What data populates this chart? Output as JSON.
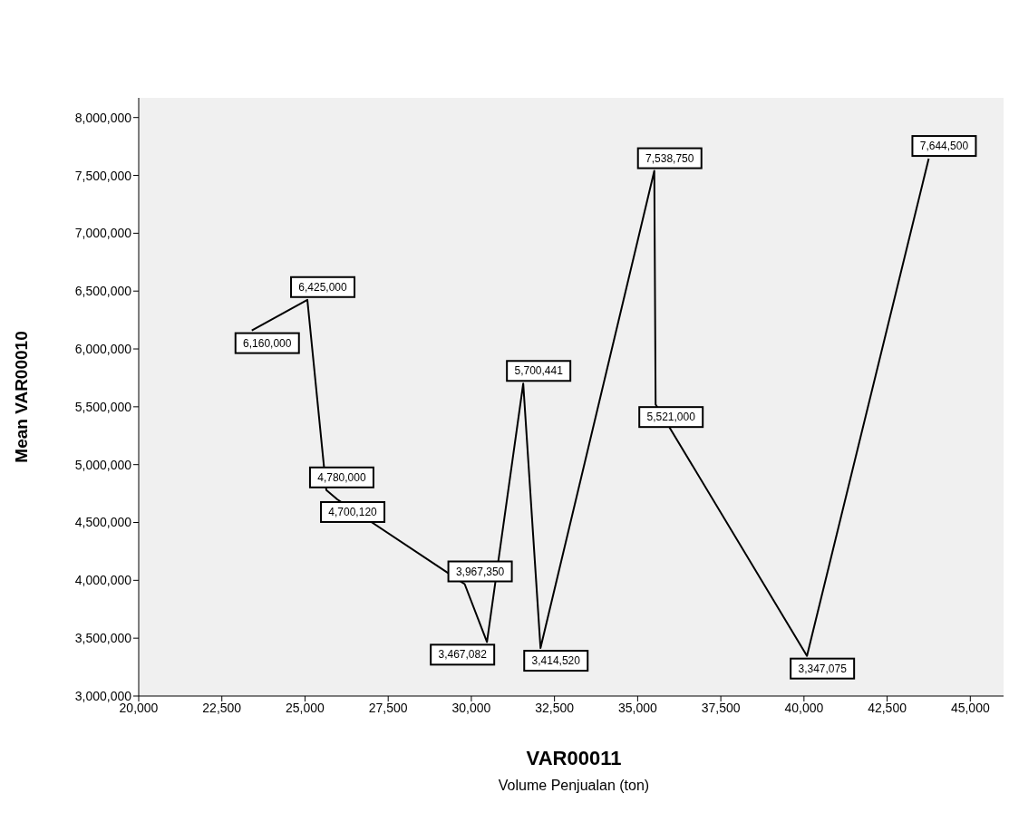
{
  "chart_data": {
    "type": "line",
    "xlabel": "VAR00011",
    "ylabel": "Mean VAR00010",
    "annotations": [
      "Volume Penjualan (ton)"
    ],
    "x": [
      23400,
      25070,
      25640,
      25970,
      29800,
      30470,
      31560,
      32080,
      35500,
      35540,
      40090,
      43750
    ],
    "series": [
      {
        "color": "#000000",
        "values": [
          6160000,
          6425000,
          4780000,
          4700120,
          3967350,
          3467082,
          5700441,
          3414520,
          7538750,
          5521000,
          3347075,
          7644500
        ]
      }
    ],
    "value_labels": [
      "6,160,000",
      "6,425,000",
      "4,780,000",
      "4,700,120",
      "3,967,350",
      "3,467,082",
      "5,700,441",
      "3,414,520",
      "7,538,750",
      "5,521,000",
      "3,347,075",
      "7,644,500"
    ],
    "marker": "none",
    "line_style": "solid",
    "xlim": [
      20000,
      46000
    ],
    "xticks": [
      {
        "value": 20000,
        "label": "20,000"
      },
      {
        "value": 22500,
        "label": "22,500"
      },
      {
        "value": 25000,
        "label": "25,000"
      },
      {
        "value": 27500,
        "label": "27,500"
      },
      {
        "value": 30000,
        "label": "30,000"
      },
      {
        "value": 32500,
        "label": "32,500"
      },
      {
        "value": 35000,
        "label": "35,000"
      },
      {
        "value": 37500,
        "label": "37,500"
      },
      {
        "value": 40000,
        "label": "40,000"
      },
      {
        "value": 42500,
        "label": "42,500"
      },
      {
        "value": 45000,
        "label": "45,000"
      }
    ],
    "ylim": [
      3000000,
      8170000
    ],
    "yticks": [
      {
        "value": 3000000,
        "label": "3,000,000"
      },
      {
        "value": 3500000,
        "label": "3,500,000"
      },
      {
        "value": 4000000,
        "label": "4,000,000"
      },
      {
        "value": 4500000,
        "label": "4,500,000"
      },
      {
        "value": 5000000,
        "label": "5,000,000"
      },
      {
        "value": 5500000,
        "label": "5,500,000"
      },
      {
        "value": 6000000,
        "label": "6,000,000"
      },
      {
        "value": 6500000,
        "label": "6,500,000"
      },
      {
        "value": 7000000,
        "label": "7,000,000"
      },
      {
        "value": 7500000,
        "label": "7,500,000"
      },
      {
        "value": 8000000,
        "label": "8,000,000"
      }
    ]
  }
}
